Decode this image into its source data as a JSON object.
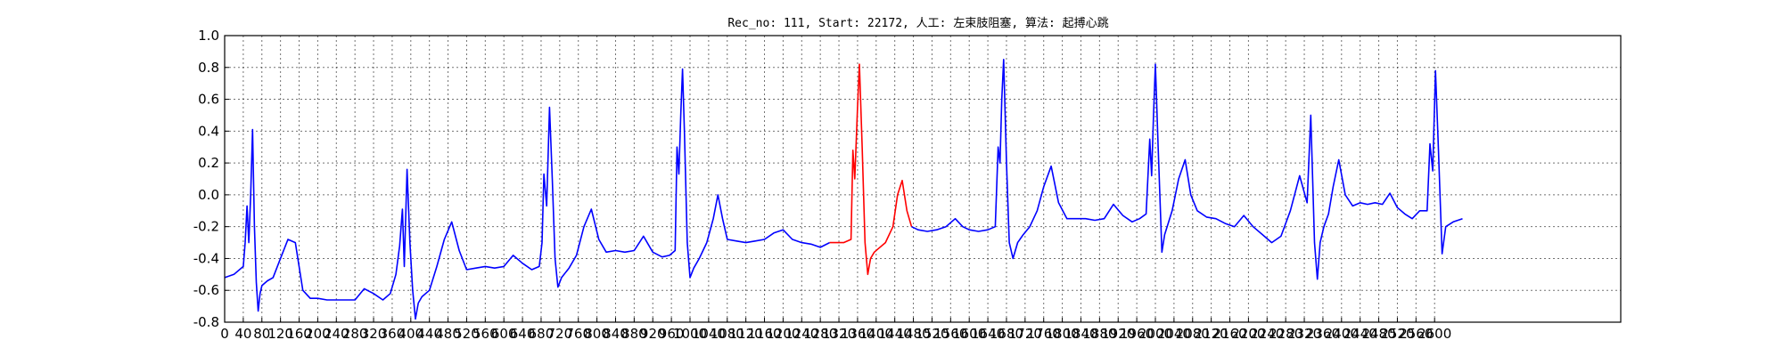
{
  "chart_data": {
    "type": "line",
    "title": "Rec_no: 111, Start: 22172, 人工: 左束肢阻塞, 算法: 起搏心跳",
    "xlim": [
      0,
      3000
    ],
    "ylim": [
      -0.8,
      1.0
    ],
    "grid": true,
    "yticks": [
      "1.0",
      "0.8",
      "0.6",
      "0.4",
      "0.2",
      "0.0",
      "-0.2",
      "-0.4",
      "-0.6",
      "-0.8"
    ],
    "xtick_labels": [
      "0",
      "40",
      "80",
      "120",
      "160",
      "200",
      "240",
      "280",
      "320",
      "360",
      "400",
      "440",
      "480",
      "520",
      "560",
      "600",
      "640",
      "680",
      "720",
      "760",
      "800",
      "840",
      "880",
      "920",
      "960",
      "1000",
      "1040",
      "1080",
      "1120",
      "1160",
      "1200",
      "1240",
      "1280",
      "1320",
      "1360",
      "1400",
      "1440",
      "1480",
      "1520",
      "1560",
      "1600",
      "1640",
      "1680",
      "1720",
      "1760",
      "1800",
      "1840",
      "1880",
      "1920",
      "1960",
      "2000",
      "2040",
      "2080",
      "2120",
      "2160",
      "2200",
      "2240",
      "2280",
      "2320",
      "2360",
      "2400",
      "2440",
      "2480",
      "2520",
      "2560",
      "2600"
    ],
    "colors": {
      "normal": "#0000ff",
      "highlight": "#ff0000"
    },
    "series": [
      {
        "color": "#0000ff",
        "x": [
          0,
          20,
          40,
          44,
          48,
          52,
          56,
          60,
          64,
          68,
          72,
          76,
          80,
          84,
          92,
          104,
          120,
          136,
          152,
          168,
          184,
          200,
          220,
          250,
          280,
          300,
          320,
          340,
          356,
          368,
          376,
          382,
          386,
          392,
          398,
          404,
          410,
          416,
          424,
          440,
          456,
          472,
          488,
          504,
          520,
          540,
          560,
          580,
          600,
          620,
          640,
          660,
          676,
          682,
          686,
          692,
          698,
          704,
          710,
          716,
          724,
          740,
          756,
          772,
          788,
          804,
          820,
          840,
          860,
          880,
          900,
          920,
          940,
          956,
          968,
          972,
          976,
          980,
          984,
          988,
          994,
          1000,
          1008,
          1020,
          1036,
          1050,
          1060,
          1070,
          1080,
          1100,
          1120,
          1140,
          1160,
          1180,
          1200,
          1220,
          1240,
          1260,
          1280,
          1300
        ],
        "y": [
          -0.52,
          -0.5,
          -0.45,
          -0.3,
          -0.07,
          -0.3,
          0.0,
          0.41,
          -0.2,
          -0.55,
          -0.73,
          -0.62,
          -0.57,
          -0.56,
          -0.54,
          -0.52,
          -0.4,
          -0.28,
          -0.3,
          -0.6,
          -0.65,
          -0.65,
          -0.66,
          -0.66,
          -0.66,
          -0.59,
          -0.62,
          -0.66,
          -0.62,
          -0.5,
          -0.32,
          -0.09,
          -0.45,
          0.16,
          -0.3,
          -0.6,
          -0.78,
          -0.68,
          -0.64,
          -0.6,
          -0.45,
          -0.28,
          -0.17,
          -0.35,
          -0.47,
          -0.46,
          -0.45,
          -0.46,
          -0.45,
          -0.38,
          -0.43,
          -0.47,
          -0.45,
          -0.3,
          0.13,
          -0.07,
          0.55,
          0.1,
          -0.4,
          -0.58,
          -0.52,
          -0.46,
          -0.38,
          -0.2,
          -0.09,
          -0.28,
          -0.36,
          -0.35,
          -0.36,
          -0.35,
          -0.26,
          -0.36,
          -0.39,
          -0.38,
          -0.35,
          0.3,
          0.13,
          0.5,
          0.79,
          0.4,
          -0.3,
          -0.52,
          -0.46,
          -0.4,
          -0.3,
          -0.15,
          0.0,
          -0.15,
          -0.28,
          -0.29,
          -0.3,
          -0.29,
          -0.28,
          -0.24,
          -0.22,
          -0.28,
          -0.3,
          -0.31,
          -0.33,
          -0.3
        ]
      },
      {
        "color": "#ff0000",
        "x": [
          1300,
          1330,
          1346,
          1350,
          1354,
          1360,
          1364,
          1370,
          1376,
          1382,
          1388,
          1396,
          1404,
          1420,
          1436,
          1446,
          1456,
          1466,
          1476
        ],
        "y": [
          -0.3,
          -0.3,
          -0.28,
          0.28,
          0.1,
          0.55,
          0.82,
          0.3,
          -0.3,
          -0.5,
          -0.4,
          -0.36,
          -0.34,
          -0.3,
          -0.2,
          0.0,
          0.09,
          -0.1,
          -0.2
        ]
      },
      {
        "color": "#0000ff",
        "x": [
          1476,
          1490,
          1510,
          1530,
          1550,
          1570,
          1586,
          1600,
          1620,
          1640,
          1656,
          1662,
          1666,
          1670,
          1674,
          1680,
          1686,
          1694,
          1704,
          1716,
          1730,
          1746,
          1760,
          1776,
          1792,
          1810,
          1830,
          1850,
          1870,
          1890,
          1910,
          1930,
          1950,
          1966,
          1980,
          1988,
          1992,
          1996,
          2000,
          2006,
          2014,
          2020,
          2036,
          2050,
          2064,
          2076,
          2090,
          2110,
          2130,
          2150,
          2170,
          2190,
          2210,
          2230,
          2250,
          2270,
          2290,
          2310,
          2326,
          2334,
          2338,
          2342,
          2348,
          2354,
          2362,
          2372,
          2382,
          2394,
          2408,
          2424,
          2440,
          2456,
          2472,
          2488,
          2504,
          2520,
          2536,
          2552,
          2568,
          2584,
          2590,
          2596,
          2602,
          2608,
          2616,
          2624,
          2640,
          2660
        ],
        "y": [
          -0.2,
          -0.22,
          -0.23,
          -0.22,
          -0.2,
          -0.15,
          -0.2,
          -0.22,
          -0.23,
          -0.22,
          -0.2,
          0.3,
          0.2,
          0.6,
          0.85,
          0.2,
          -0.3,
          -0.4,
          -0.3,
          -0.25,
          -0.2,
          -0.1,
          0.05,
          0.18,
          -0.05,
          -0.15,
          -0.15,
          -0.15,
          -0.16,
          -0.15,
          -0.06,
          -0.13,
          -0.17,
          -0.15,
          -0.12,
          0.35,
          0.12,
          0.5,
          0.82,
          0.3,
          -0.36,
          -0.25,
          -0.1,
          0.1,
          0.22,
          0.0,
          -0.1,
          -0.14,
          -0.15,
          -0.18,
          -0.2,
          -0.13,
          -0.2,
          -0.25,
          -0.3,
          -0.26,
          -0.1,
          0.12,
          -0.05,
          0.5,
          0.1,
          -0.3,
          -0.53,
          -0.3,
          -0.2,
          -0.12,
          0.05,
          0.22,
          0.0,
          -0.07,
          -0.05,
          -0.06,
          -0.05,
          -0.06,
          0.01,
          -0.08,
          -0.12,
          -0.15,
          -0.1,
          -0.1,
          0.32,
          0.15,
          0.78,
          0.3,
          -0.37,
          -0.2,
          -0.17,
          -0.15
        ]
      }
    ]
  }
}
